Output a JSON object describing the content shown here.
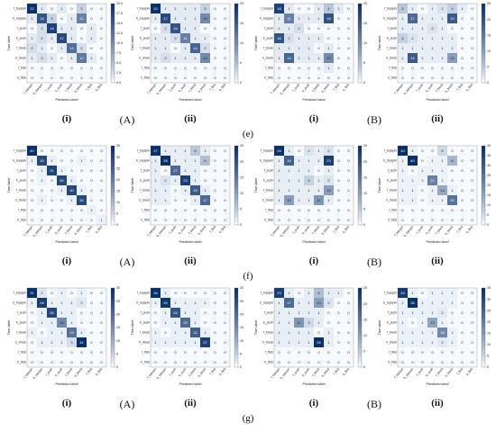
{
  "colors": {
    "low": "#f7fbff",
    "high": "#08306b"
  },
  "classes": [
    "f_topspin",
    "b_topspin",
    "f_push",
    "b_push",
    "f_block",
    "b_block",
    "f_flick",
    "b_flick"
  ],
  "axis": {
    "xlabel": "Predicted label",
    "ylabel": "True label"
  },
  "rows": [
    {
      "letter": "(e)",
      "panels": [
        {
          "sub": "(i)",
          "group": "(A)"
        },
        {
          "sub": "(ii)",
          "group": ""
        },
        {
          "sub": "(i)",
          "group": "(B)"
        },
        {
          "sub": "(ii)",
          "group": ""
        }
      ]
    },
    {
      "letter": "(f)",
      "panels": [
        {
          "sub": "(i)",
          "group": "(A)"
        },
        {
          "sub": "(ii)",
          "group": ""
        },
        {
          "sub": "(i)",
          "group": "(B)"
        },
        {
          "sub": "(ii)",
          "group": ""
        }
      ]
    },
    {
      "letter": "(g)",
      "panels": [
        {
          "sub": "(i)",
          "group": "(A)"
        },
        {
          "sub": "(ii)",
          "group": ""
        },
        {
          "sub": "(i)",
          "group": "(B)"
        },
        {
          "sub": "(ii)",
          "group": ""
        }
      ]
    }
  ],
  "chart_data": [
    {
      "type": "heatmap",
      "vmax": 20,
      "colorbar_ticks": [
        "20.0",
        "17.5",
        "15.0",
        "12.5",
        "10.0",
        "7.5",
        "5.0",
        "2.5",
        "0.0"
      ],
      "matrix": [
        [
          22,
          1,
          0,
          1,
          0,
          3,
          0,
          0
        ],
        [
          1,
          16,
          3,
          0,
          1,
          11,
          0,
          0
        ],
        [
          0,
          2,
          18,
          1,
          1,
          0,
          1,
          0
        ],
        [
          1,
          2,
          1,
          17,
          1,
          0,
          1,
          0
        ],
        [
          2,
          1,
          0,
          1,
          13,
          2,
          0,
          0
        ],
        [
          1,
          2,
          1,
          0,
          1,
          12,
          1,
          0
        ],
        [
          0,
          0,
          0,
          0,
          0,
          0,
          0,
          0
        ],
        [
          0,
          0,
          0,
          0,
          0,
          0,
          0,
          0
        ]
      ]
    },
    {
      "type": "heatmap",
      "vmax": 20,
      "colorbar_ticks": [
        "20",
        "15",
        "10",
        "5",
        "0"
      ],
      "matrix": [
        [
          20,
          1,
          1,
          1,
          1,
          3,
          0,
          0
        ],
        [
          1,
          17,
          1,
          1,
          1,
          10,
          0,
          0
        ],
        [
          0,
          2,
          16,
          1,
          1,
          0,
          0,
          0
        ],
        [
          1,
          1,
          2,
          11,
          1,
          1,
          0,
          0
        ],
        [
          1,
          1,
          0,
          1,
          14,
          2,
          0,
          0
        ],
        [
          1,
          2,
          1,
          1,
          1,
          10,
          0,
          0
        ],
        [
          0,
          0,
          0,
          0,
          0,
          0,
          0,
          0
        ],
        [
          0,
          0,
          0,
          0,
          0,
          0,
          0,
          0
        ]
      ]
    },
    {
      "type": "heatmap",
      "vmax": 20,
      "colorbar_ticks": [
        "20",
        "15",
        "10",
        "5",
        "0"
      ],
      "matrix": [
        [
          18,
          1,
          0,
          0,
          1,
          4,
          1,
          0
        ],
        [
          1,
          11,
          1,
          1,
          1,
          16,
          0,
          0
        ],
        [
          1,
          1,
          2,
          0,
          0,
          0,
          0,
          0
        ],
        [
          16,
          2,
          1,
          1,
          1,
          0,
          0,
          0
        ],
        [
          1,
          1,
          1,
          1,
          0,
          1,
          0,
          0
        ],
        [
          1,
          14,
          1,
          1,
          1,
          10,
          0,
          0
        ],
        [
          0,
          0,
          0,
          0,
          0,
          1,
          0,
          0
        ],
        [
          0,
          0,
          0,
          0,
          0,
          0,
          0,
          0
        ]
      ]
    },
    {
      "type": "heatmap",
      "vmax": 25,
      "colorbar_ticks": [
        "25",
        "20",
        "15",
        "10",
        "5",
        "0"
      ],
      "matrix": [
        [
          5,
          1,
          0,
          1,
          2,
          4,
          1,
          0
        ],
        [
          1,
          17,
          1,
          1,
          1,
          19,
          0,
          0
        ],
        [
          1,
          1,
          1,
          2,
          1,
          0,
          0,
          0
        ],
        [
          4,
          2,
          1,
          1,
          1,
          1,
          0,
          0
        ],
        [
          1,
          1,
          1,
          1,
          1,
          1,
          0,
          0
        ],
        [
          1,
          19,
          1,
          1,
          1,
          10,
          0,
          0
        ],
        [
          0,
          0,
          0,
          0,
          0,
          0,
          0,
          0
        ],
        [
          0,
          0,
          0,
          0,
          0,
          0,
          0,
          0
        ]
      ]
    },
    {
      "type": "heatmap",
      "vmax": 35,
      "colorbar_ticks": [
        "35",
        "30",
        "25",
        "20",
        "15",
        "10",
        "5",
        "0"
      ],
      "matrix": [
        [
          40,
          0,
          0,
          0,
          0,
          0,
          0,
          0
        ],
        [
          1,
          30,
          1,
          0,
          0,
          1,
          0,
          0
        ],
        [
          0,
          1,
          31,
          1,
          0,
          0,
          0,
          0
        ],
        [
          0,
          1,
          0,
          30,
          1,
          0,
          0,
          0
        ],
        [
          0,
          0,
          0,
          1,
          30,
          1,
          0,
          0
        ],
        [
          0,
          1,
          0,
          0,
          1,
          30,
          0,
          0
        ],
        [
          0,
          0,
          0,
          0,
          0,
          0,
          1,
          0
        ],
        [
          0,
          0,
          0,
          0,
          0,
          0,
          0,
          1
        ]
      ]
    },
    {
      "type": "heatmap",
      "vmax": 25,
      "colorbar_ticks": [
        "25",
        "20",
        "15",
        "10",
        "5",
        "0"
      ],
      "matrix": [
        [
          27,
          1,
          1,
          1,
          5,
          1,
          0,
          0
        ],
        [
          1,
          28,
          1,
          1,
          1,
          6,
          0,
          0
        ],
        [
          1,
          0,
          17,
          1,
          1,
          0,
          0,
          0
        ],
        [
          1,
          2,
          1,
          23,
          1,
          0,
          0,
          0
        ],
        [
          1,
          1,
          0,
          1,
          19,
          1,
          0,
          0
        ],
        [
          1,
          1,
          0,
          0,
          1,
          17,
          0,
          0
        ],
        [
          0,
          0,
          0,
          0,
          0,
          0,
          0,
          0
        ],
        [
          0,
          0,
          0,
          0,
          0,
          0,
          0,
          0
        ]
      ]
    },
    {
      "type": "heatmap",
      "vmax": 25,
      "colorbar_ticks": [
        "25",
        "20",
        "15",
        "10",
        "5",
        "0"
      ],
      "matrix": [
        [
          28,
          1,
          0,
          2,
          1,
          2,
          0,
          0
        ],
        [
          1,
          18,
          1,
          1,
          1,
          23,
          0,
          0
        ],
        [
          1,
          1,
          1,
          1,
          0,
          1,
          0,
          0
        ],
        [
          1,
          1,
          1,
          4,
          1,
          2,
          0,
          0
        ],
        [
          1,
          1,
          1,
          1,
          1,
          10,
          0,
          0
        ],
        [
          1,
          10,
          1,
          1,
          11,
          1,
          0,
          0
        ],
        [
          0,
          0,
          0,
          0,
          0,
          0,
          0,
          0
        ],
        [
          0,
          0,
          0,
          0,
          0,
          0,
          0,
          0
        ]
      ]
    },
    {
      "type": "heatmap",
      "vmax": 40,
      "colorbar_ticks": [
        "40",
        "35",
        "30",
        "25",
        "20",
        "15",
        "10",
        "5",
        "0"
      ],
      "matrix": [
        [
          40,
          1,
          0,
          0,
          5,
          0,
          0,
          0
        ],
        [
          1,
          40,
          0,
          1,
          1,
          11,
          0,
          0
        ],
        [
          1,
          0,
          1,
          1,
          1,
          0,
          0,
          0
        ],
        [
          1,
          1,
          1,
          22,
          1,
          0,
          0,
          0
        ],
        [
          1,
          1,
          0,
          1,
          14,
          1,
          0,
          0
        ],
        [
          1,
          1,
          0,
          1,
          1,
          25,
          0,
          0
        ],
        [
          0,
          0,
          0,
          0,
          0,
          0,
          0,
          0
        ],
        [
          0,
          0,
          0,
          0,
          0,
          0,
          0,
          0
        ]
      ]
    },
    {
      "type": "heatmap",
      "vmax": 30,
      "colorbar_ticks": [
        "30",
        "25",
        "20",
        "15",
        "10",
        "5",
        "0"
      ],
      "matrix": [
        [
          31,
          2,
          0,
          1,
          0,
          1,
          0,
          0
        ],
        [
          1,
          28,
          1,
          1,
          1,
          2,
          0,
          0
        ],
        [
          0,
          1,
          26,
          1,
          1,
          0,
          0,
          0
        ],
        [
          0,
          1,
          1,
          15,
          1,
          0,
          0,
          0
        ],
        [
          1,
          0,
          1,
          1,
          19,
          1,
          0,
          0
        ],
        [
          0,
          1,
          1,
          1,
          3,
          31,
          0,
          0
        ],
        [
          0,
          0,
          0,
          0,
          0,
          0,
          0,
          0
        ],
        [
          0,
          0,
          0,
          0,
          0,
          0,
          0,
          0
        ]
      ]
    },
    {
      "type": "heatmap",
      "vmax": 30,
      "colorbar_ticks": [
        "30",
        "25",
        "20",
        "15",
        "10",
        "5",
        "0"
      ],
      "matrix": [
        [
          34,
          1,
          0,
          0,
          0,
          0,
          0,
          0
        ],
        [
          1,
          29,
          1,
          1,
          1,
          1,
          0,
          0
        ],
        [
          0,
          1,
          24,
          1,
          1,
          0,
          0,
          0
        ],
        [
          0,
          1,
          1,
          20,
          1,
          0,
          0,
          0
        ],
        [
          1,
          0,
          1,
          1,
          22,
          1,
          0,
          0
        ],
        [
          1,
          1,
          1,
          1,
          1,
          27,
          0,
          0
        ],
        [
          0,
          0,
          0,
          0,
          0,
          0,
          0,
          0
        ],
        [
          0,
          0,
          0,
          0,
          0,
          0,
          0,
          0
        ]
      ]
    },
    {
      "type": "heatmap",
      "vmax": 25,
      "colorbar_ticks": [
        "25",
        "20",
        "15",
        "10",
        "5",
        "0"
      ],
      "matrix": [
        [
          23,
          1,
          0,
          1,
          6,
          1,
          1,
          0
        ],
        [
          1,
          17,
          1,
          1,
          10,
          2,
          0,
          0
        ],
        [
          1,
          1,
          1,
          1,
          1,
          0,
          0,
          0
        ],
        [
          1,
          1,
          11,
          3,
          1,
          0,
          0,
          0
        ],
        [
          1,
          1,
          1,
          1,
          0,
          1,
          0,
          0
        ],
        [
          1,
          1,
          1,
          1,
          25,
          1,
          0,
          0
        ],
        [
          0,
          0,
          0,
          0,
          0,
          0,
          0,
          0
        ],
        [
          0,
          0,
          0,
          0,
          0,
          0,
          0,
          0
        ]
      ]
    },
    {
      "type": "heatmap",
      "vmax": 35,
      "colorbar_ticks": [
        "35",
        "30",
        "25",
        "20",
        "15",
        "10",
        "5",
        "0"
      ],
      "matrix": [
        [
          33,
          1,
          0,
          1,
          1,
          1,
          0,
          0
        ],
        [
          1,
          38,
          1,
          1,
          1,
          1,
          0,
          0
        ],
        [
          1,
          1,
          1,
          1,
          2,
          0,
          0,
          0
        ],
        [
          1,
          0,
          1,
          13,
          1,
          0,
          0,
          0
        ],
        [
          1,
          1,
          1,
          1,
          18,
          1,
          0,
          0
        ],
        [
          1,
          1,
          1,
          1,
          2,
          1,
          0,
          0
        ],
        [
          0,
          0,
          0,
          0,
          0,
          0,
          0,
          0
        ],
        [
          0,
          0,
          0,
          0,
          0,
          0,
          0,
          0
        ]
      ]
    }
  ]
}
